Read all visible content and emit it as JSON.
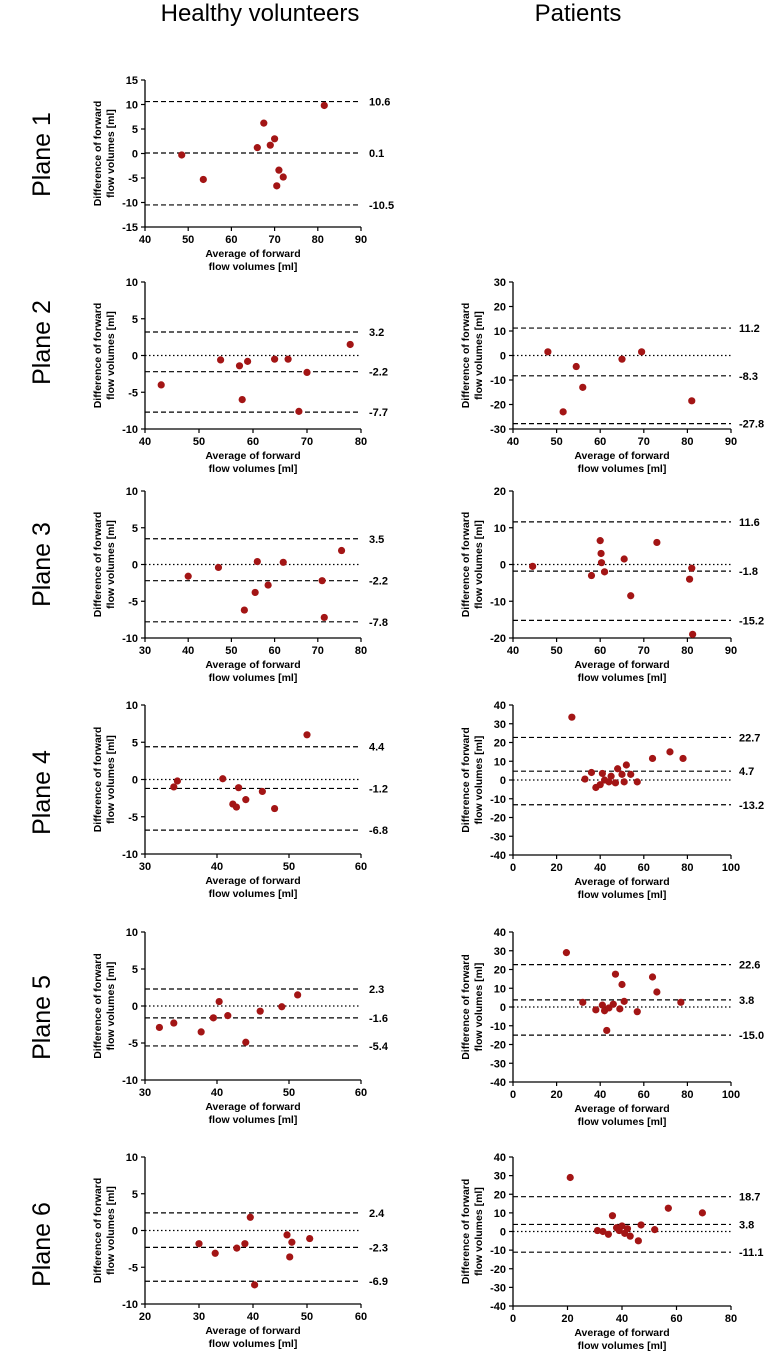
{
  "headers": {
    "left": "Healthy volunteers",
    "right": "Patients"
  },
  "planes": [
    "Plane 1",
    "Plane 2",
    "Plane 3",
    "Plane 4",
    "Plane 5",
    "Plane 6"
  ],
  "colors": {
    "point": "#a31515",
    "axis": "#000000"
  },
  "chart_data": [
    {
      "id": "p1-healthy",
      "type": "scatter",
      "group": "Healthy volunteers",
      "plane": "Plane 1",
      "xlabel": "Average of forward flow volumes [ml]",
      "ylabel": "Difference of forward flow volumes [ml]",
      "xlim": [
        40,
        90
      ],
      "xticks": [
        40,
        50,
        60,
        70,
        80,
        90
      ],
      "ylim": [
        -15,
        15
      ],
      "yticks": [
        -15,
        -10,
        -5,
        0,
        5,
        10,
        15
      ],
      "points": [
        [
          48.5,
          -0.3
        ],
        [
          53.5,
          -5.3
        ],
        [
          66,
          1.2
        ],
        [
          67.5,
          6.2
        ],
        [
          69,
          1.7
        ],
        [
          70,
          3
        ],
        [
          70.5,
          -6.6
        ],
        [
          71,
          -3.4
        ],
        [
          72,
          -4.8
        ],
        [
          81.5,
          9.8
        ]
      ],
      "lines": [
        {
          "value": 10.6,
          "label": "10.6",
          "style": "dashed"
        },
        {
          "value": 0.1,
          "label": "0.1",
          "style": "dashed"
        },
        {
          "value": -10.5,
          "label": "-10.5",
          "style": "dashed"
        }
      ]
    },
    {
      "id": "p2-healthy",
      "type": "scatter",
      "group": "Healthy volunteers",
      "plane": "Plane 2",
      "xlabel": "Average of forward flow volumes [ml]",
      "ylabel": "Difference of forward flow volumes [ml]",
      "xlim": [
        40,
        80
      ],
      "xticks": [
        40,
        50,
        60,
        70,
        80
      ],
      "ylim": [
        -10,
        10
      ],
      "yticks": [
        -10,
        -5,
        0,
        5,
        10
      ],
      "points": [
        [
          43,
          -4
        ],
        [
          54,
          -0.6
        ],
        [
          57.5,
          -1.4
        ],
        [
          58,
          -6
        ],
        [
          59,
          -0.8
        ],
        [
          64,
          -0.5
        ],
        [
          66.5,
          -0.5
        ],
        [
          68.5,
          -7.6
        ],
        [
          70,
          -2.3
        ],
        [
          78,
          1.5
        ]
      ],
      "lines": [
        {
          "value": 3.2,
          "label": "3.2",
          "style": "dashed"
        },
        {
          "value": 0,
          "label": "",
          "style": "dotted"
        },
        {
          "value": -2.2,
          "label": "-2.2",
          "style": "dashed"
        },
        {
          "value": -7.7,
          "label": "-7.7",
          "style": "dashed"
        }
      ]
    },
    {
      "id": "p2-patients",
      "type": "scatter",
      "group": "Patients",
      "plane": "Plane 2",
      "xlabel": "Average of forward flow volumes [ml]",
      "ylabel": "Difference of forward flow volumes [ml]",
      "xlim": [
        40,
        90
      ],
      "xticks": [
        40,
        50,
        60,
        70,
        80,
        90
      ],
      "ylim": [
        -30,
        30
      ],
      "yticks": [
        -30,
        -20,
        -10,
        0,
        10,
        20,
        30
      ],
      "points": [
        [
          48,
          1.5
        ],
        [
          51.5,
          -23
        ],
        [
          54.5,
          -4.5
        ],
        [
          56,
          -13
        ],
        [
          65,
          -1.5
        ],
        [
          69.5,
          1.5
        ],
        [
          81,
          -18.5
        ]
      ],
      "lines": [
        {
          "value": 11.2,
          "label": "11.2",
          "style": "dashed"
        },
        {
          "value": 0,
          "label": "",
          "style": "dotted"
        },
        {
          "value": -8.3,
          "label": "-8.3",
          "style": "dashed"
        },
        {
          "value": -27.8,
          "label": "-27.8",
          "style": "dashed"
        }
      ]
    },
    {
      "id": "p3-healthy",
      "type": "scatter",
      "group": "Healthy volunteers",
      "plane": "Plane 3",
      "xlabel": "Average of forward flow volumes [ml]",
      "ylabel": "Difference of forward flow volumes [ml]",
      "xlim": [
        30,
        80
      ],
      "xticks": [
        30,
        40,
        50,
        60,
        70,
        80
      ],
      "ylim": [
        -10,
        10
      ],
      "yticks": [
        -10,
        -5,
        0,
        5,
        10
      ],
      "points": [
        [
          40,
          -1.6
        ],
        [
          47,
          -0.4
        ],
        [
          53,
          -6.2
        ],
        [
          55.5,
          -3.8
        ],
        [
          56,
          0.4
        ],
        [
          58.5,
          -2.8
        ],
        [
          62,
          0.3
        ],
        [
          71,
          -2.2
        ],
        [
          71.5,
          -7.2
        ],
        [
          75.5,
          1.9
        ]
      ],
      "lines": [
        {
          "value": 3.5,
          "label": "3.5",
          "style": "dashed"
        },
        {
          "value": 0,
          "label": "",
          "style": "dotted"
        },
        {
          "value": -2.2,
          "label": "-2.2",
          "style": "dashed"
        },
        {
          "value": -7.8,
          "label": "-7.8",
          "style": "dashed"
        }
      ]
    },
    {
      "id": "p3-patients",
      "type": "scatter",
      "group": "Patients",
      "plane": "Plane 3",
      "xlabel": "Average of forward flow volumes [ml]",
      "ylabel": "Difference of forward flow volumes [ml]",
      "xlim": [
        40,
        90
      ],
      "xticks": [
        40,
        50,
        60,
        70,
        80,
        90
      ],
      "ylim": [
        -20,
        20
      ],
      "yticks": [
        -20,
        -10,
        0,
        10,
        20
      ],
      "points": [
        [
          44.5,
          -0.5
        ],
        [
          58,
          -3
        ],
        [
          60,
          6.5
        ],
        [
          60.2,
          3
        ],
        [
          60.3,
          0.5
        ],
        [
          61,
          -2
        ],
        [
          65.5,
          1.5
        ],
        [
          67,
          -8.5
        ],
        [
          73,
          6
        ],
        [
          80.5,
          -4
        ],
        [
          81,
          -1
        ],
        [
          81.2,
          -19
        ]
      ],
      "lines": [
        {
          "value": 11.6,
          "label": "11.6",
          "style": "dashed"
        },
        {
          "value": 0,
          "label": "",
          "style": "dotted"
        },
        {
          "value": -1.8,
          "label": "-1.8",
          "style": "dashed"
        },
        {
          "value": -15.2,
          "label": "-15.2",
          "style": "dashed"
        }
      ]
    },
    {
      "id": "p4-healthy",
      "type": "scatter",
      "group": "Healthy volunteers",
      "plane": "Plane 4",
      "xlabel": "Average of forward flow volumes [ml]",
      "ylabel": "Difference of forward flow volumes [ml]",
      "xlim": [
        30,
        60
      ],
      "xticks": [
        30,
        40,
        50,
        60
      ],
      "ylim": [
        -10,
        10
      ],
      "yticks": [
        -10,
        -5,
        0,
        5,
        10
      ],
      "points": [
        [
          34,
          -1
        ],
        [
          34.5,
          -0.2
        ],
        [
          40.8,
          0.1
        ],
        [
          42.2,
          -3.3
        ],
        [
          42.7,
          -3.7
        ],
        [
          43,
          -1.1
        ],
        [
          44,
          -2.7
        ],
        [
          46.3,
          -1.6
        ],
        [
          48,
          -3.9
        ],
        [
          52.5,
          6
        ]
      ],
      "lines": [
        {
          "value": 4.4,
          "label": "4.4",
          "style": "dashed"
        },
        {
          "value": 0,
          "label": "",
          "style": "dotted"
        },
        {
          "value": -1.2,
          "label": "-1.2",
          "style": "dashed"
        },
        {
          "value": -6.8,
          "label": "-6.8",
          "style": "dashed"
        }
      ]
    },
    {
      "id": "p4-patients",
      "type": "scatter",
      "group": "Patients",
      "plane": "Plane 4",
      "xlabel": "Average of forward flow volumes [ml]",
      "ylabel": "Difference of forward flow volumes [ml]",
      "xlim": [
        0,
        100
      ],
      "xticks": [
        0,
        20,
        40,
        60,
        80,
        100
      ],
      "ylim": [
        -40,
        40
      ],
      "yticks": [
        -40,
        -30,
        -20,
        -10,
        0,
        10,
        20,
        30,
        40
      ],
      "points": [
        [
          27,
          33.5
        ],
        [
          33,
          0.5
        ],
        [
          36,
          4
        ],
        [
          38,
          -4
        ],
        [
          40,
          -2.5
        ],
        [
          41,
          3.5
        ],
        [
          42,
          0
        ],
        [
          44,
          -1
        ],
        [
          45,
          2
        ],
        [
          47,
          -1.5
        ],
        [
          48,
          6
        ],
        [
          50,
          3
        ],
        [
          51,
          -1
        ],
        [
          52,
          8
        ],
        [
          54,
          3
        ],
        [
          57,
          -1
        ],
        [
          64,
          11.5
        ],
        [
          72,
          15
        ],
        [
          78,
          11.5
        ]
      ],
      "lines": [
        {
          "value": 22.7,
          "label": "22.7",
          "style": "dashed"
        },
        {
          "value": 4.7,
          "label": "4.7",
          "style": "dashed"
        },
        {
          "value": 0,
          "label": "",
          "style": "dotted"
        },
        {
          "value": -13.2,
          "label": "-13.2",
          "style": "dashed"
        }
      ]
    },
    {
      "id": "p5-healthy",
      "type": "scatter",
      "group": "Healthy volunteers",
      "plane": "Plane 5",
      "xlabel": "Average of forward flow volumes [ml]",
      "ylabel": "Difference of forward flow volumes [ml]",
      "xlim": [
        30,
        60
      ],
      "xticks": [
        30,
        40,
        50,
        60
      ],
      "ylim": [
        -10,
        10
      ],
      "yticks": [
        -10,
        -5,
        0,
        5,
        10
      ],
      "points": [
        [
          32,
          -2.9
        ],
        [
          34,
          -2.3
        ],
        [
          37.8,
          -3.5
        ],
        [
          39.5,
          -1.6
        ],
        [
          40.3,
          0.6
        ],
        [
          41.5,
          -1.3
        ],
        [
          44,
          -4.9
        ],
        [
          46,
          -0.7
        ],
        [
          49,
          -0.1
        ],
        [
          51.2,
          1.5
        ]
      ],
      "lines": [
        {
          "value": 2.3,
          "label": "2.3",
          "style": "dashed"
        },
        {
          "value": 0,
          "label": "",
          "style": "dotted"
        },
        {
          "value": -1.6,
          "label": "-1.6",
          "style": "dashed"
        },
        {
          "value": -5.4,
          "label": "-5.4",
          "style": "dashed"
        }
      ]
    },
    {
      "id": "p5-patients",
      "type": "scatter",
      "group": "Patients",
      "plane": "Plane 5",
      "xlabel": "Average of forward flow volumes [ml]",
      "ylabel": "Difference of forward flow volumes [ml]",
      "xlim": [
        0,
        100
      ],
      "xticks": [
        0,
        20,
        40,
        60,
        80,
        100
      ],
      "ylim": [
        -40,
        40
      ],
      "yticks": [
        -40,
        -30,
        -20,
        -10,
        0,
        10,
        20,
        30,
        40
      ],
      "points": [
        [
          24.5,
          29
        ],
        [
          32,
          2.5
        ],
        [
          38,
          -1.5
        ],
        [
          41,
          1
        ],
        [
          42,
          -2
        ],
        [
          43,
          -12.5
        ],
        [
          44,
          -0.5
        ],
        [
          46,
          1.5
        ],
        [
          47,
          17.5
        ],
        [
          49,
          -1
        ],
        [
          50,
          12
        ],
        [
          51,
          3
        ],
        [
          57,
          -2.5
        ],
        [
          64,
          16
        ],
        [
          66,
          8
        ],
        [
          77,
          2.5
        ]
      ],
      "lines": [
        {
          "value": 22.6,
          "label": "22.6",
          "style": "dashed"
        },
        {
          "value": 3.8,
          "label": "3.8",
          "style": "dashed"
        },
        {
          "value": 0,
          "label": "",
          "style": "dotted"
        },
        {
          "value": -15.0,
          "label": "-15.0",
          "style": "dashed"
        }
      ]
    },
    {
      "id": "p6-healthy",
      "type": "scatter",
      "group": "Healthy volunteers",
      "plane": "Plane 6",
      "xlabel": "Average of forward flow volumes [ml]",
      "ylabel": "Difference of forward flow volumes [ml]",
      "xlim": [
        20,
        60
      ],
      "xticks": [
        20,
        30,
        40,
        50,
        60
      ],
      "ylim": [
        -10,
        10
      ],
      "yticks": [
        -10,
        -5,
        0,
        5,
        10
      ],
      "points": [
        [
          30,
          -1.8
        ],
        [
          33,
          -3.1
        ],
        [
          37,
          -2.4
        ],
        [
          38.5,
          -1.8
        ],
        [
          39.5,
          1.8
        ],
        [
          40.3,
          -7.4
        ],
        [
          46.3,
          -0.6
        ],
        [
          46.8,
          -3.6
        ],
        [
          47.2,
          -1.6
        ],
        [
          50.5,
          -1.1
        ]
      ],
      "lines": [
        {
          "value": 2.4,
          "label": "2.4",
          "style": "dashed"
        },
        {
          "value": 0,
          "label": "",
          "style": "dotted"
        },
        {
          "value": -2.3,
          "label": "-2.3",
          "style": "dashed"
        },
        {
          "value": -6.9,
          "label": "-6.9",
          "style": "dashed"
        }
      ]
    },
    {
      "id": "p6-patients",
      "type": "scatter",
      "group": "Patients",
      "plane": "Plane 6",
      "xlabel": "Average of forward flow volumes [ml]",
      "ylabel": "Difference of forward flow volumes [ml]",
      "xlim": [
        0,
        80
      ],
      "xticks": [
        0,
        20,
        40,
        60,
        80
      ],
      "ylim": [
        -40,
        40
      ],
      "yticks": [
        -40,
        -30,
        -20,
        -10,
        0,
        10,
        20,
        30,
        40
      ],
      "points": [
        [
          21,
          29
        ],
        [
          31,
          0.5
        ],
        [
          33,
          0
        ],
        [
          35,
          -1.5
        ],
        [
          36.5,
          8.5
        ],
        [
          38,
          2
        ],
        [
          39,
          0.5
        ],
        [
          40,
          3
        ],
        [
          41,
          -1
        ],
        [
          42,
          1.5
        ],
        [
          43,
          -2.5
        ],
        [
          46,
          -5
        ],
        [
          47,
          3.5
        ],
        [
          52,
          1
        ],
        [
          57,
          12.5
        ],
        [
          69.5,
          10
        ]
      ],
      "lines": [
        {
          "value": 18.7,
          "label": "18.7",
          "style": "dashed"
        },
        {
          "value": 3.8,
          "label": "3.8",
          "style": "dashed"
        },
        {
          "value": 0,
          "label": "",
          "style": "dotted"
        },
        {
          "value": -11.1,
          "label": "-11.1",
          "style": "dashed"
        }
      ]
    }
  ]
}
